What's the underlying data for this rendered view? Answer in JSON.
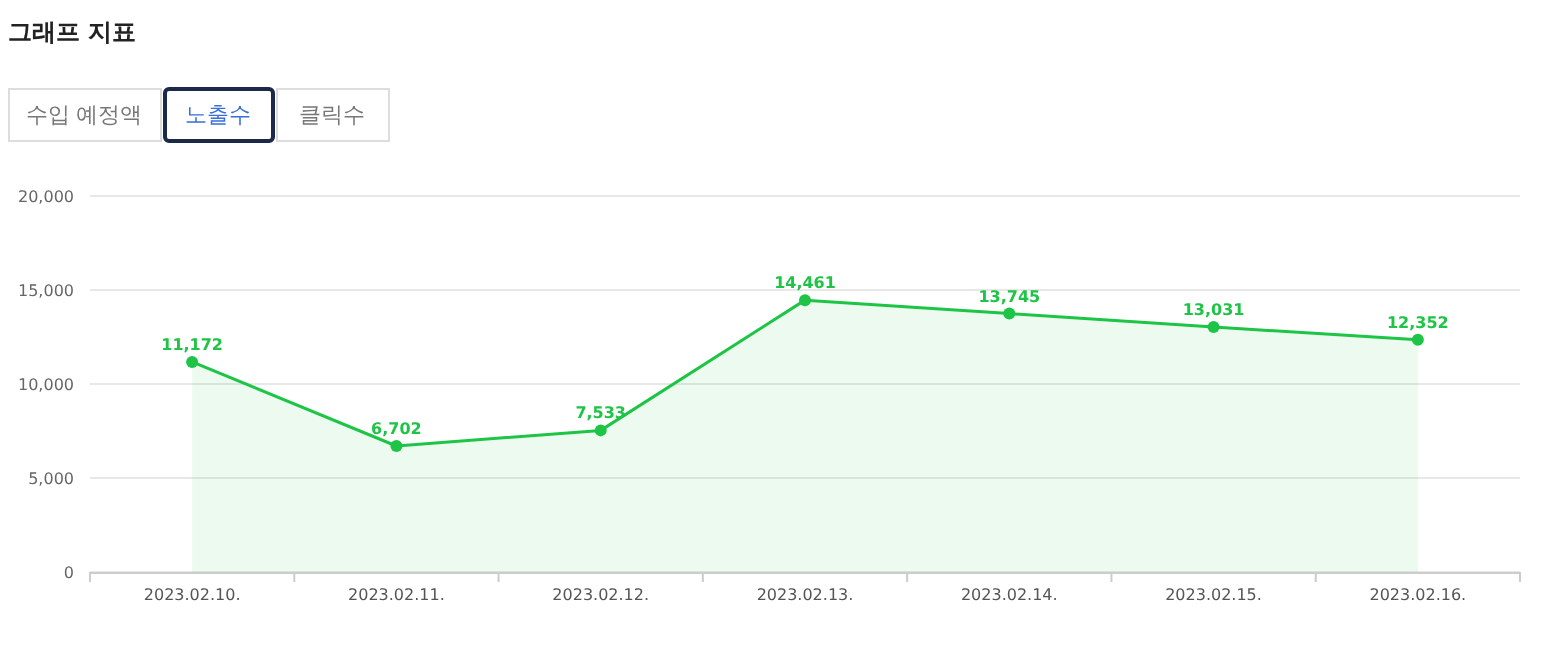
{
  "chart_data": {
    "type": "area",
    "title": "그래프 지표",
    "annotations": [
      "수입 예정액",
      "노출수",
      "클릭수"
    ],
    "categories": [
      "2023.02.10.",
      "2023.02.11.",
      "2023.02.12.",
      "2023.02.13.",
      "2023.02.14.",
      "2023.02.15.",
      "2023.02.16."
    ],
    "values": [
      11172,
      6702,
      7533,
      14461,
      13745,
      13031,
      12352
    ],
    "value_labels": [
      "11,172",
      "6,702",
      "7,533",
      "14,461",
      "13,745",
      "13,031",
      "12,352"
    ],
    "color": "#1ec445",
    "ylim": [
      0,
      20000
    ],
    "yticks": [
      {
        "value": 0,
        "label": "0"
      },
      {
        "value": 5000,
        "label": "5,000"
      },
      {
        "value": 10000,
        "label": "10,000"
      },
      {
        "value": 15000,
        "label": "15,000"
      },
      {
        "value": 20000,
        "label": "20,000"
      }
    ],
    "grid": "y",
    "marker": "circle"
  }
}
